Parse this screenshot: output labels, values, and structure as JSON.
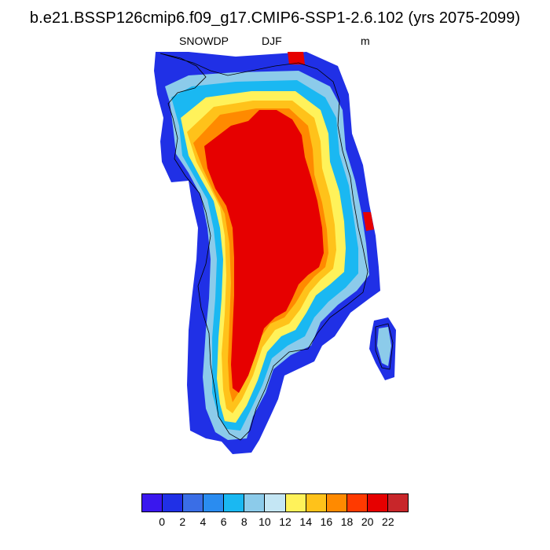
{
  "title": "b.e21.BSSP126cmip6.f09_g17.CMIP6-SSP1-2.6.102 (yrs 2075-2099)",
  "variable": "SNOWDP",
  "season": "DJF",
  "units": "m",
  "colorbar": {
    "colors": [
      "#3a17ee",
      "#2030e6",
      "#3a6ee6",
      "#2a8cf0",
      "#1ab8f2",
      "#8ccbea",
      "#c4e6f4",
      "#fff25a",
      "#ffc21a",
      "#ff8a00",
      "#ff3a00",
      "#e60000",
      "#c8262a"
    ],
    "labels": [
      "0",
      "2",
      "4",
      "6",
      "8",
      "10",
      "12",
      "14",
      "16",
      "18",
      "20",
      "22"
    ]
  }
}
